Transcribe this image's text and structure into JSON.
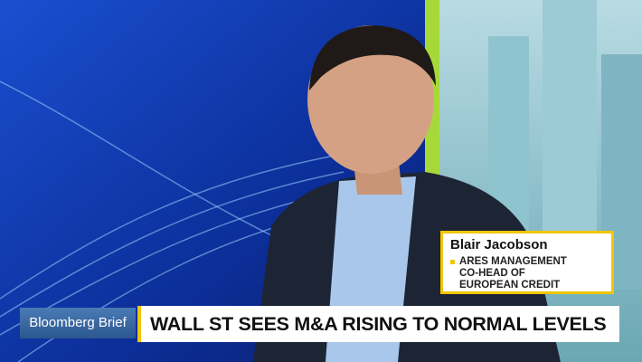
{
  "lower_third": {
    "name": "Blair Jacobson",
    "title_lines": [
      "ARES MANAGEMENT",
      "CO-HEAD OF",
      "EUROPEAN CREDIT"
    ],
    "show": "Bloomberg Brief",
    "headline": "WALL ST SEES M&A RISING TO NORMAL LEVELS"
  }
}
